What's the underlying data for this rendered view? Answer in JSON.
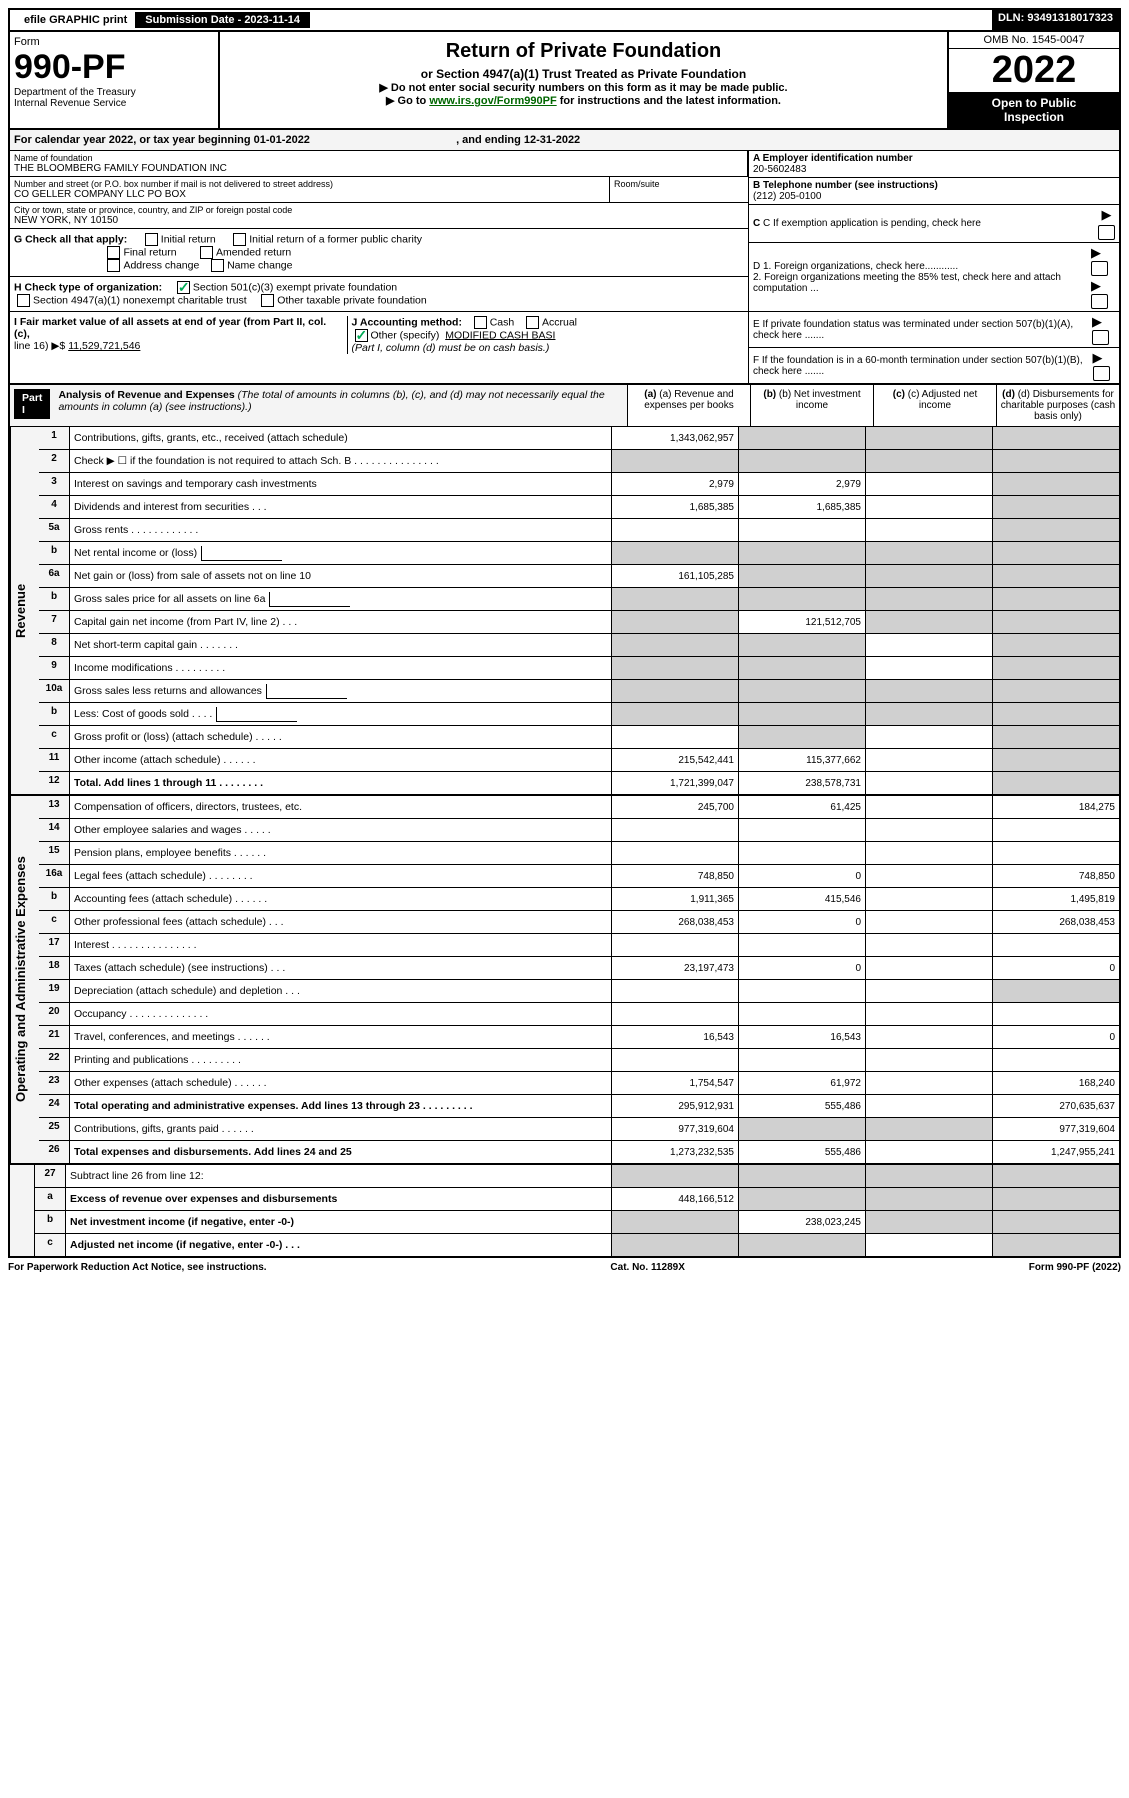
{
  "topbar": {
    "efile": "efile GRAPHIC print",
    "submission_label": "Submission Date - 2023-11-14",
    "dln": "DLN: 93491318017323"
  },
  "header": {
    "form_label": "Form",
    "form_number": "990-PF",
    "dept": "Department of the Treasury",
    "irs": "Internal Revenue Service",
    "title": "Return of Private Foundation",
    "subtitle": "or Section 4947(a)(1) Trust Treated as Private Foundation",
    "note1": "▶ Do not enter social security numbers on this form as it may be made public.",
    "note2_prefix": "▶ Go to ",
    "note2_link": "www.irs.gov/Form990PF",
    "note2_suffix": " for instructions and the latest information.",
    "omb": "OMB No. 1545-0047",
    "year": "2022",
    "open1": "Open to Public",
    "open2": "Inspection"
  },
  "calyear": {
    "text_prefix": "For calendar year 2022, or tax year beginning ",
    "begin": "01-01-2022",
    "mid": " , and ending ",
    "end": "12-31-2022"
  },
  "entity": {
    "name_label": "Name of foundation",
    "name": "THE BLOOMBERG FAMILY FOUNDATION INC",
    "addr_label": "Number and street (or P.O. box number if mail is not delivered to street address)",
    "addr": "CO GELLER COMPANY LLC PO BOX",
    "room_label": "Room/suite",
    "city_label": "City or town, state or province, country, and ZIP or foreign postal code",
    "city": "NEW YORK, NY  10150",
    "a_label": "A Employer identification number",
    "a_val": "20-5602483",
    "b_label": "B Telephone number (see instructions)",
    "b_val": "(212) 205-0100",
    "c_label": "C If exemption application is pending, check here",
    "d1": "D 1. Foreign organizations, check here............",
    "d2": "2. Foreign organizations meeting the 85% test, check here and attach computation ...",
    "e_label": "E  If private foundation status was terminated under section 507(b)(1)(A), check here .......",
    "f_label": "F  If the foundation is in a 60-month termination under section 507(b)(1)(B), check here ......."
  },
  "checks": {
    "g_label": "G Check all that apply:",
    "initial": "Initial return",
    "initial_former": "Initial return of a former public charity",
    "final": "Final return",
    "amended": "Amended return",
    "addr_change": "Address change",
    "name_change": "Name change",
    "h_label": "H Check type of organization:",
    "h1": "Section 501(c)(3) exempt private foundation",
    "h2": "Section 4947(a)(1) nonexempt charitable trust",
    "h3": "Other taxable private foundation",
    "i_label": "I Fair market value of all assets at end of year (from Part II, col. (c),",
    "i_line": "line 16) ▶$ ",
    "i_val": "11,529,721,546",
    "j_label": "J Accounting method:",
    "j_cash": "Cash",
    "j_accrual": "Accrual",
    "j_other": "Other (specify)",
    "j_other_val": "MODIFIED CASH BASI",
    "j_note": "(Part I, column (d) must be on cash basis.)"
  },
  "part1": {
    "label": "Part I",
    "title": "Analysis of Revenue and Expenses",
    "title_note": " (The total of amounts in columns (b), (c), and (d) may not necessarily equal the amounts in column (a) (see instructions).)",
    "col_a": "(a) Revenue and expenses per books",
    "col_b": "(b) Net investment income",
    "col_c": "(c) Adjusted net income",
    "col_d": "(d) Disbursements for charitable purposes (cash basis only)"
  },
  "revenue_label": "Revenue",
  "expenses_label": "Operating and Administrative Expenses",
  "rows": {
    "r1": {
      "n": "1",
      "d": "Contributions, gifts, grants, etc., received (attach schedule)",
      "a": "1,343,062,957"
    },
    "r2": {
      "n": "2",
      "d": "Check ▶ ☐ if the foundation is not required to attach Sch. B   .   .   .   .   .   .   .   .   .   .   .   .   .   .   ."
    },
    "r3": {
      "n": "3",
      "d": "Interest on savings and temporary cash investments",
      "a": "2,979",
      "b": "2,979"
    },
    "r4": {
      "n": "4",
      "d": "Dividends and interest from securities   .   .   .",
      "a": "1,685,385",
      "b": "1,685,385"
    },
    "r5a": {
      "n": "5a",
      "d": "Gross rents   .   .   .   .   .   .   .   .   .   .   .   ."
    },
    "r5b": {
      "n": "b",
      "d": "Net rental income or (loss)"
    },
    "r6a": {
      "n": "6a",
      "d": "Net gain or (loss) from sale of assets not on line 10",
      "a": "161,105,285"
    },
    "r6b": {
      "n": "b",
      "d": "Gross sales price for all assets on line 6a"
    },
    "r7": {
      "n": "7",
      "d": "Capital gain net income (from Part IV, line 2)   .   .   .",
      "b": "121,512,705"
    },
    "r8": {
      "n": "8",
      "d": "Net short-term capital gain   .   .   .   .   .   .   ."
    },
    "r9": {
      "n": "9",
      "d": "Income modifications   .   .   .   .   .   .   .   .   ."
    },
    "r10a": {
      "n": "10a",
      "d": "Gross sales less returns and allowances"
    },
    "r10b": {
      "n": "b",
      "d": "Less: Cost of goods sold   .   .   .   ."
    },
    "r10c": {
      "n": "c",
      "d": "Gross profit or (loss) (attach schedule)   .   .   .   .   ."
    },
    "r11": {
      "n": "11",
      "d": "Other income (attach schedule)   .   .   .   .   .   .",
      "a": "215,542,441",
      "b": "115,377,662"
    },
    "r12": {
      "n": "12",
      "d": "Total. Add lines 1 through 11   .   .   .   .   .   .   .   .",
      "a": "1,721,399,047",
      "b": "238,578,731"
    },
    "r13": {
      "n": "13",
      "d": "Compensation of officers, directors, trustees, etc.",
      "a": "245,700",
      "b": "61,425",
      "dd": "184,275"
    },
    "r14": {
      "n": "14",
      "d": "Other employee salaries and wages   .   .   .   .   ."
    },
    "r15": {
      "n": "15",
      "d": "Pension plans, employee benefits   .   .   .   .   .   ."
    },
    "r16a": {
      "n": "16a",
      "d": "Legal fees (attach schedule)   .   .   .   .   .   .   .   .",
      "a": "748,850",
      "b": "0",
      "dd": "748,850"
    },
    "r16b": {
      "n": "b",
      "d": "Accounting fees (attach schedule)   .   .   .   .   .   .",
      "a": "1,911,365",
      "b": "415,546",
      "dd": "1,495,819"
    },
    "r16c": {
      "n": "c",
      "d": "Other professional fees (attach schedule)   .   .   .",
      "a": "268,038,453",
      "b": "0",
      "dd": "268,038,453"
    },
    "r17": {
      "n": "17",
      "d": "Interest   .   .   .   .   .   .   .   .   .   .   .   .   .   .   ."
    },
    "r18": {
      "n": "18",
      "d": "Taxes (attach schedule) (see instructions)   .   .   .",
      "a": "23,197,473",
      "b": "0",
      "dd": "0"
    },
    "r19": {
      "n": "19",
      "d": "Depreciation (attach schedule) and depletion   .   .   ."
    },
    "r20": {
      "n": "20",
      "d": "Occupancy   .   .   .   .   .   .   .   .   .   .   .   .   .   ."
    },
    "r21": {
      "n": "21",
      "d": "Travel, conferences, and meetings   .   .   .   .   .   .",
      "a": "16,543",
      "b": "16,543",
      "dd": "0"
    },
    "r22": {
      "n": "22",
      "d": "Printing and publications   .   .   .   .   .   .   .   .   ."
    },
    "r23": {
      "n": "23",
      "d": "Other expenses (attach schedule)   .   .   .   .   .   .",
      "a": "1,754,547",
      "b": "61,972",
      "dd": "168,240"
    },
    "r24": {
      "n": "24",
      "d": "Total operating and administrative expenses. Add lines 13 through 23   .   .   .   .   .   .   .   .   .",
      "a": "295,912,931",
      "b": "555,486",
      "dd": "270,635,637"
    },
    "r25": {
      "n": "25",
      "d": "Contributions, gifts, grants paid   .   .   .   .   .   .",
      "a": "977,319,604",
      "dd": "977,319,604"
    },
    "r26": {
      "n": "26",
      "d": "Total expenses and disbursements. Add lines 24 and 25",
      "a": "1,273,232,535",
      "b": "555,486",
      "dd": "1,247,955,241"
    },
    "r27": {
      "n": "27",
      "d": "Subtract line 26 from line 12:"
    },
    "r27a": {
      "n": "a",
      "d": "Excess of revenue over expenses and disbursements",
      "a": "448,166,512"
    },
    "r27b": {
      "n": "b",
      "d": "Net investment income (if negative, enter -0-)",
      "b": "238,023,245"
    },
    "r27c": {
      "n": "c",
      "d": "Adjusted net income (if negative, enter -0-)   .   .   ."
    }
  },
  "footer": {
    "left": "For Paperwork Reduction Act Notice, see instructions.",
    "center": "Cat. No. 11289X",
    "right": "Form 990-PF (2022)"
  }
}
